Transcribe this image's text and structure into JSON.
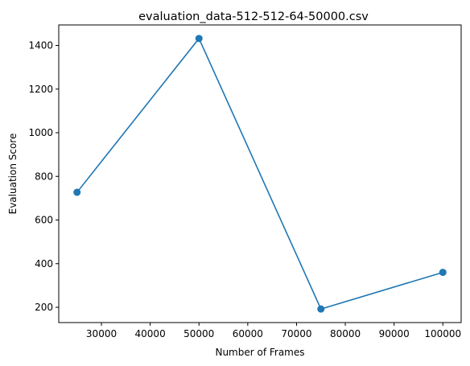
{
  "chart_data": {
    "type": "line",
    "title": "evaluation_data-512-512-64-50000.csv",
    "xlabel": "Number of Frames",
    "ylabel": "Evaluation Score",
    "x": [
      25000,
      50000,
      75000,
      100000
    ],
    "series": [
      {
        "values": [
          727,
          1432,
          192,
          360
        ],
        "color": "#1f77b4",
        "marker": "circle"
      }
    ],
    "xlim": [
      21250,
      103750
    ],
    "ylim": [
      130,
      1494
    ],
    "xticks": [
      30000,
      40000,
      50000,
      60000,
      70000,
      80000,
      90000,
      100000
    ],
    "yticks": [
      200,
      400,
      600,
      800,
      1000,
      1200,
      1400
    ],
    "grid": false
  }
}
